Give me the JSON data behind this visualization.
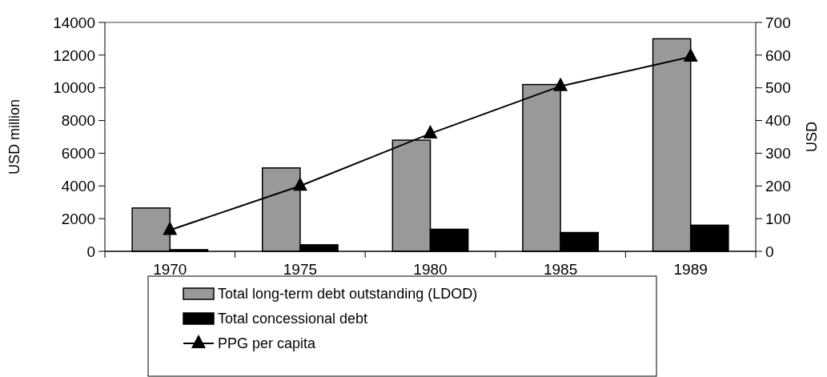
{
  "chart_data": {
    "type": "bar",
    "categories": [
      "1970",
      "1975",
      "1980",
      "1985",
      "1989"
    ],
    "series": [
      {
        "name": "Total long-term debt outstanding (LDOD)",
        "color": "#999999",
        "values": [
          2650,
          5100,
          6800,
          10200,
          13000
        ]
      },
      {
        "name": "Total concessional debt",
        "color": "#000000",
        "values": [
          100,
          400,
          1350,
          1150,
          1600
        ]
      },
      {
        "name": "PPG per capita",
        "type": "line",
        "axis": "y2",
        "color": "#000000",
        "marker": "triangle",
        "values": [
          65,
          200,
          360,
          505,
          595
        ]
      }
    ],
    "ylabel": "USD million",
    "y2label": "USD",
    "ylim": [
      0,
      14000
    ],
    "yticks": [
      0,
      2000,
      4000,
      6000,
      8000,
      10000,
      12000,
      14000
    ],
    "y2lim": [
      0,
      700
    ],
    "y2ticks": [
      0,
      100,
      200,
      300,
      400,
      500,
      600,
      700
    ],
    "legend": "bottom",
    "grid": false
  }
}
